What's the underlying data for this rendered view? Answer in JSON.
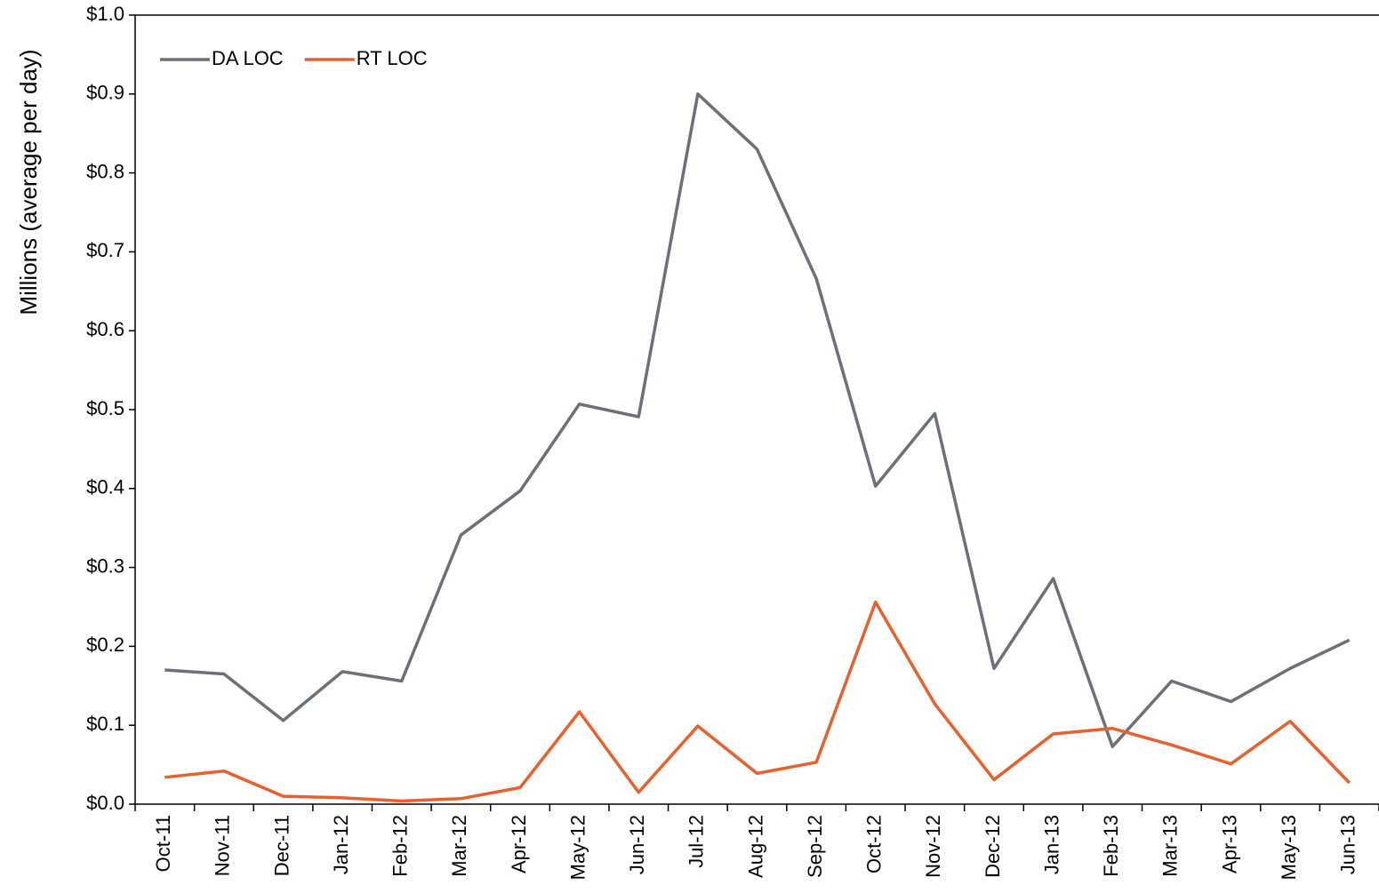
{
  "chart_data": {
    "type": "line",
    "y_label": "Millions (average per day)",
    "categories": [
      "Oct-11",
      "Nov-11",
      "Dec-11",
      "Jan-12",
      "Feb-12",
      "Mar-12",
      "Apr-12",
      "May-12",
      "Jun-12",
      "Jul-12",
      "Aug-12",
      "Sep-12",
      "Oct-12",
      "Nov-12",
      "Dec-12",
      "Jan-13",
      "Feb-13",
      "Mar-13",
      "Apr-13",
      "May-13",
      "Jun-13"
    ],
    "series": [
      {
        "name": "DA LOC",
        "color": "#6b7079",
        "values": [
          0.17,
          0.165,
          0.106,
          0.168,
          0.156,
          0.341,
          0.397,
          0.507,
          0.491,
          0.9,
          0.83,
          0.666,
          0.403,
          0.495,
          0.172,
          0.286,
          0.073,
          0.156,
          0.13,
          0.172,
          0.208
        ]
      },
      {
        "name": "RT LOC",
        "color": "#e8602c",
        "values": [
          0.034,
          0.042,
          0.01,
          0.008,
          0.004,
          0.007,
          0.021,
          0.117,
          0.015,
          0.099,
          0.039,
          0.053,
          0.256,
          0.127,
          0.031,
          0.089,
          0.096,
          0.075,
          0.051,
          0.105,
          0.027
        ]
      }
    ],
    "ylim": [
      0,
      1.0
    ],
    "yticks": [
      {
        "value": 0,
        "label": "$0.0"
      },
      {
        "value": 0.1,
        "label": "$0.1"
      },
      {
        "value": 0.2,
        "label": "$0.2"
      },
      {
        "value": 0.3,
        "label": "$0.3"
      },
      {
        "value": 0.4,
        "label": "$0.4"
      },
      {
        "value": 0.5,
        "label": "$0.5"
      },
      {
        "value": 0.6,
        "label": "$0.6"
      },
      {
        "value": 0.7,
        "label": "$0.7"
      },
      {
        "value": 0.8,
        "label": "$0.8"
      },
      {
        "value": 0.9,
        "label": "$0.9"
      },
      {
        "value": 1.0,
        "label": "$1.0"
      }
    ],
    "grid": false,
    "legend": "upper left"
  }
}
